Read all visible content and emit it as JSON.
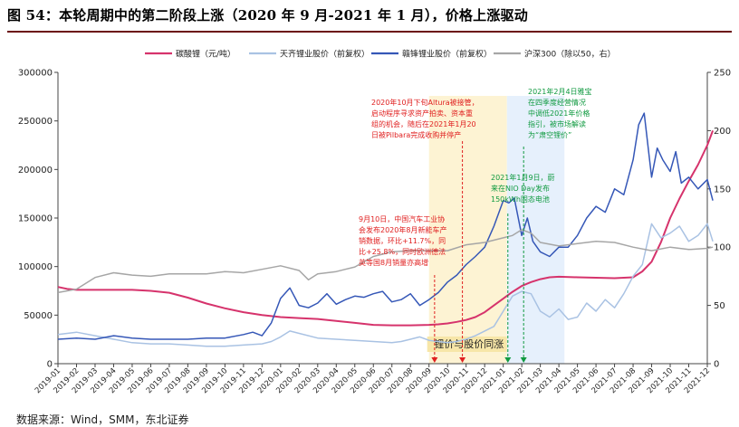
{
  "figure": {
    "title": "图 54：本轮周期中的第二阶段上涨（2020 年 9 月-2021 年 1 月），价格上涨驱动",
    "source": "数据来源：Wind，SMM，东北证券"
  },
  "chart_data": {
    "type": "line",
    "legend_position": "top",
    "grid": false,
    "x_ticks": [
      "2019-01",
      "2019-02",
      "2019-03",
      "2019-04",
      "2019-05",
      "2019-06",
      "2019-07",
      "2019-08",
      "2019-09",
      "2019-10",
      "2019-11",
      "2019-12",
      "2020-01",
      "2020-02",
      "2020-03",
      "2020-04",
      "2020-05",
      "2020-06",
      "2020-07",
      "2020-08",
      "2020-09",
      "2020-10",
      "2020-11",
      "2020-12",
      "2021-01",
      "2021-02",
      "2021-03",
      "2021-04",
      "2021-05",
      "2021-06",
      "2021-07",
      "2021-08",
      "2021-09",
      "2021-10",
      "2021-11",
      "2021-12"
    ],
    "y_left": {
      "ticks": [
        0,
        50000,
        100000,
        150000,
        200000,
        250000,
        300000
      ],
      "range": [
        0,
        300000
      ]
    },
    "y_right": {
      "ticks": [
        0,
        50,
        100,
        150,
        200,
        250
      ],
      "range": [
        0,
        250
      ]
    },
    "series": [
      {
        "name": "碳酸锂（元/吨）",
        "axis": "left",
        "color": "#d6336c",
        "width": 2,
        "x": [
          0,
          0.5,
          1,
          2,
          3,
          4,
          5,
          6,
          7,
          8,
          9,
          10,
          11,
          12,
          13,
          14,
          15,
          16,
          17,
          18,
          19,
          20,
          20.5,
          21,
          21.5,
          22,
          22.5,
          23,
          23.5,
          24,
          24.5,
          25,
          25.5,
          26,
          26.5,
          27,
          28,
          29,
          30,
          31,
          31.5,
          32,
          32.5,
          33,
          33.5,
          34,
          34.5,
          35,
          35.3
        ],
        "y": [
          79000,
          77000,
          76000,
          76000,
          76000,
          76000,
          75000,
          73000,
          68000,
          62000,
          57000,
          53000,
          50000,
          48000,
          47000,
          46000,
          44000,
          42000,
          40000,
          39500,
          39500,
          40000,
          40500,
          41500,
          43000,
          45000,
          48000,
          53000,
          60000,
          67000,
          74000,
          80000,
          84000,
          87000,
          89000,
          89500,
          89000,
          88500,
          88000,
          89000,
          95000,
          105000,
          125000,
          150000,
          170000,
          188000,
          205000,
          225000,
          240000
        ]
      },
      {
        "name": "天齐锂业股价（前复权）",
        "axis": "right",
        "color": "#a9c2e3",
        "width": 1.5,
        "x": [
          0,
          1,
          2,
          3,
          4,
          5,
          6,
          7,
          8,
          9,
          10,
          11,
          11.5,
          12,
          12.5,
          13,
          14,
          15,
          16,
          17,
          18,
          18.5,
          19,
          19.5,
          20,
          20.5,
          21,
          21.5,
          22,
          22.5,
          23,
          23.5,
          24,
          24.5,
          25,
          25.5,
          26,
          26.5,
          27,
          27.5,
          28,
          28.5,
          29,
          29.5,
          30,
          30.5,
          31,
          31.5,
          32,
          32.5,
          33,
          33.5,
          34,
          34.5,
          35,
          35.3
        ],
        "y": [
          25,
          27,
          24,
          21,
          18,
          17,
          17,
          16,
          15,
          15,
          16,
          17,
          19,
          23,
          28,
          26,
          22,
          21,
          20,
          19,
          18,
          19,
          21,
          23,
          20,
          19,
          18,
          19,
          21,
          24,
          28,
          32,
          45,
          58,
          62,
          60,
          45,
          40,
          47,
          38,
          40,
          52,
          45,
          55,
          48,
          60,
          75,
          85,
          120,
          108,
          112,
          118,
          105,
          110,
          120,
          105
        ]
      },
      {
        "name": "赣锋锂业股价（前复权）",
        "axis": "right",
        "color": "#3557b7",
        "width": 1.5,
        "x": [
          0,
          1,
          2,
          3,
          4,
          5,
          6,
          7,
          8,
          9,
          10,
          10.5,
          11,
          11.5,
          12,
          12.5,
          13,
          13.5,
          14,
          14.5,
          15,
          15.5,
          16,
          16.5,
          17,
          17.5,
          18,
          18.5,
          19,
          19.5,
          20,
          20.5,
          21,
          21.5,
          22,
          22.5,
          23,
          23.5,
          24,
          24.3,
          24.6,
          25,
          25.3,
          25.6,
          26,
          26.5,
          27,
          27.5,
          28,
          28.5,
          29,
          29.5,
          30,
          30.5,
          31,
          31.3,
          31.6,
          32,
          32.3,
          32.6,
          33,
          33.3,
          33.6,
          34,
          34.5,
          35,
          35.3
        ],
        "y": [
          21,
          22,
          21,
          24,
          22,
          21,
          21,
          21,
          22,
          22,
          25,
          27,
          24,
          35,
          56,
          65,
          50,
          48,
          52,
          60,
          51,
          55,
          58,
          57,
          60,
          62,
          53,
          55,
          60,
          50,
          55,
          61,
          70,
          76,
          85,
          92,
          100,
          118,
          140,
          138,
          142,
          110,
          125,
          105,
          96,
          92,
          100,
          100,
          110,
          125,
          135,
          130,
          150,
          145,
          175,
          205,
          215,
          160,
          185,
          175,
          165,
          182,
          155,
          160,
          150,
          158,
          140
        ]
      },
      {
        "name": "沪深300（除以50，右）",
        "axis": "right",
        "color": "#a6a6a6",
        "width": 1.5,
        "x": [
          0,
          1,
          2,
          3,
          4,
          5,
          6,
          7,
          8,
          9,
          10,
          11,
          12,
          13,
          13.5,
          14,
          15,
          16,
          17,
          18,
          19,
          20,
          21,
          22,
          23,
          24,
          24.5,
          25,
          25.5,
          26,
          27,
          28,
          29,
          30,
          31,
          32,
          33,
          34,
          35,
          35.3
        ],
        "y": [
          61,
          64,
          74,
          78,
          76,
          75,
          77,
          77,
          77,
          79,
          78,
          81,
          84,
          80,
          72,
          77,
          79,
          83,
          92,
          96,
          97,
          97,
          97,
          102,
          104,
          108,
          110,
          115,
          112,
          104,
          101,
          103,
          105,
          104,
          100,
          97,
          100,
          98,
          99,
          100
        ]
      }
    ],
    "highlights": [
      {
        "label": "锂价与股价同涨",
        "from": 20.0,
        "to": 24.2,
        "color": "#fdf3d3"
      },
      {
        "from": 24.2,
        "to": 27.3,
        "color": "#e6f0fc"
      }
    ],
    "annotations": [
      {
        "id": "ann-altura",
        "color": "#e02020",
        "lines": [
          "2020年10月下旬Altura被接管，",
          "启动程序寻求资产拍卖、资本重",
          "组的机会，随后在2021年1月20",
          "日被Pilbara完成收购并停产"
        ]
      },
      {
        "id": "ann-report",
        "color": "#109a40",
        "lines": [
          "2021年2月4日雅宝",
          "在四季度经营情况",
          "中调低2021年价格",
          "指引，被市场解读",
          "为“肃空锂价”"
        ]
      },
      {
        "id": "ann-nio",
        "color": "#109a40",
        "lines": [
          "2021年1月9日，蔚",
          "来在NIO Day发布",
          "150kWh固态电池"
        ]
      },
      {
        "id": "ann-caam",
        "color": "#e02020",
        "lines": [
          "9月10日，中国汽车工业协",
          "会发布2020年8月新能车产",
          "销数据，环比+11.7%，同",
          "比+25.8%，同时欧洲德法",
          "英等国8月销量亦高增"
        ]
      }
    ]
  }
}
